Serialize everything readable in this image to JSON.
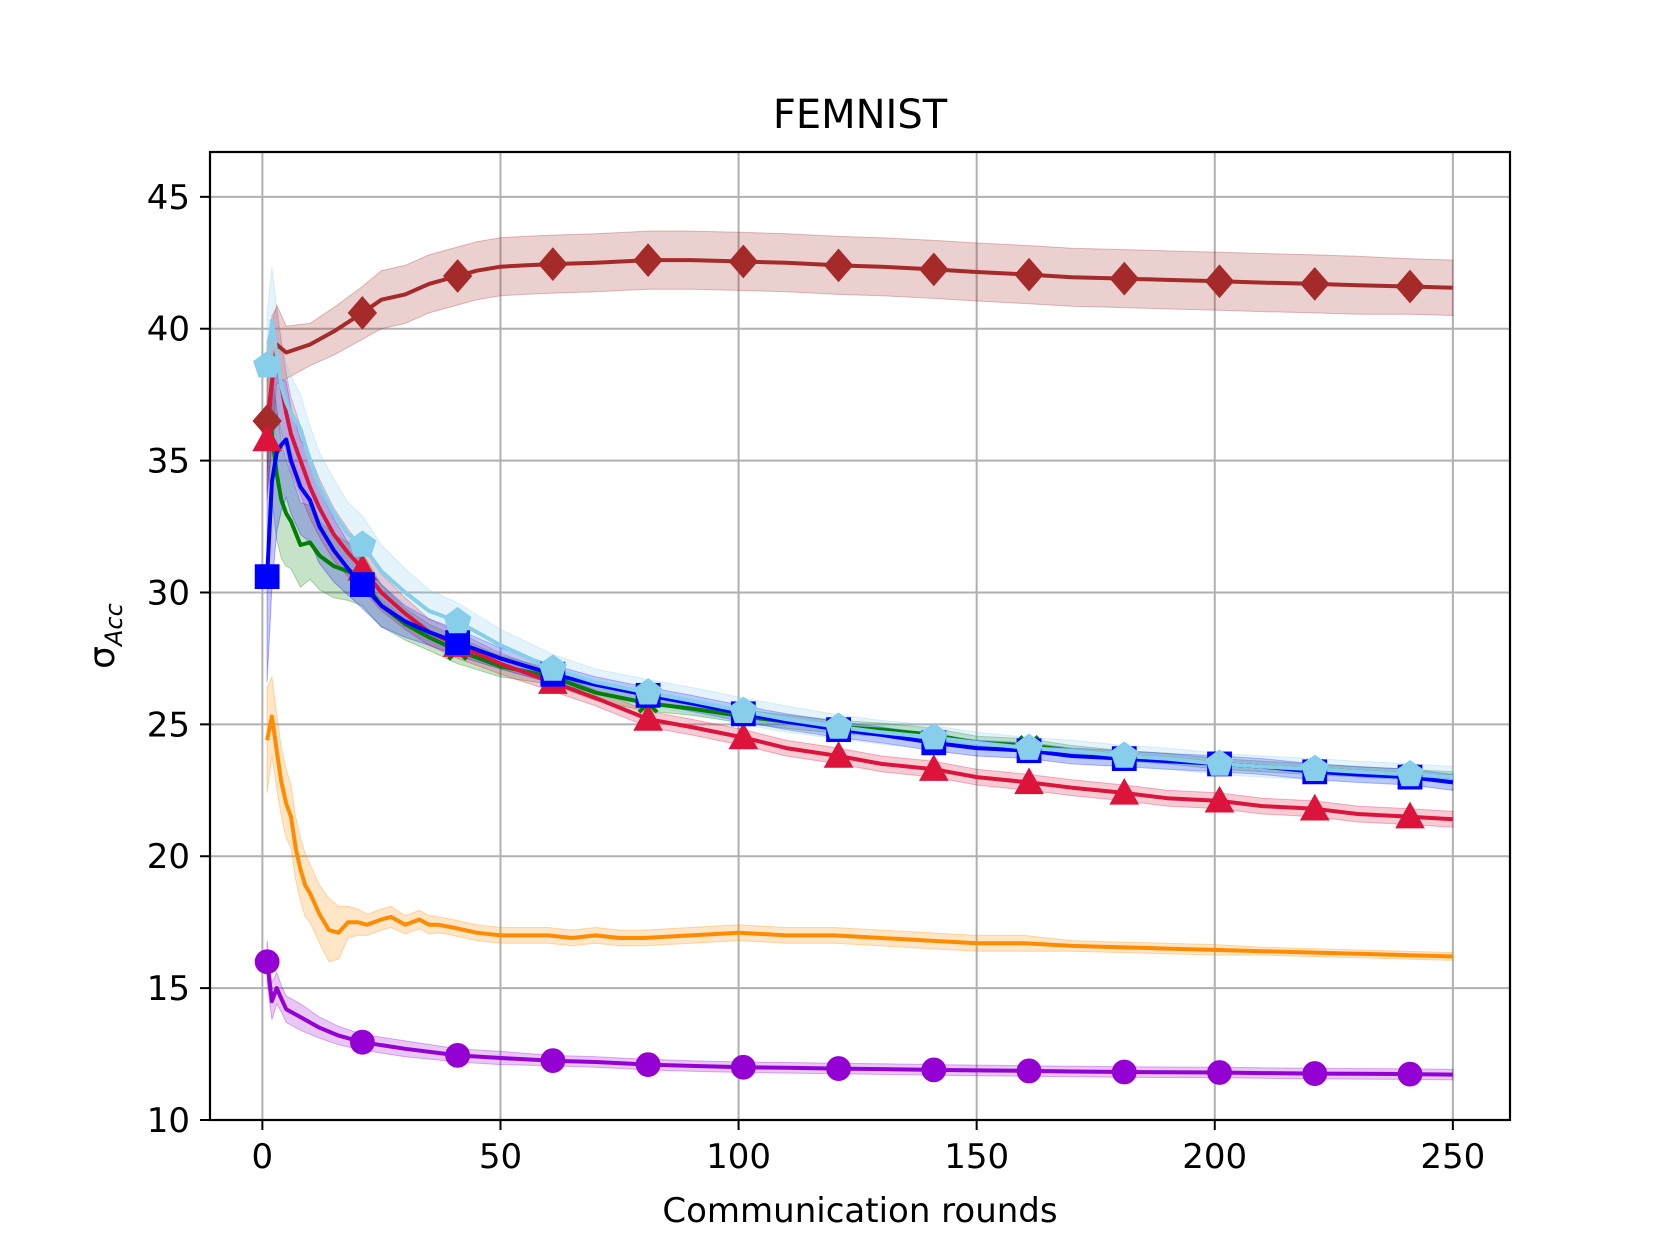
{
  "chart_data": {
    "type": "line",
    "title": "FEMNIST",
    "xlabel": "Communication rounds",
    "ylabel": "σ",
    "ylabel_sub": "Acc",
    "xlim": [
      -11,
      262
    ],
    "ylim": [
      10,
      46.7
    ],
    "xticks": [
      0,
      50,
      100,
      150,
      200,
      250
    ],
    "yticks": [
      10,
      15,
      20,
      25,
      30,
      35,
      40,
      45
    ],
    "grid": true,
    "series": [
      {
        "name": "brown-diamond",
        "color": "#a52a2a",
        "marker": "diamond",
        "x": [
          1,
          3,
          5,
          10,
          15,
          21,
          25,
          30,
          35,
          41,
          45,
          50,
          55,
          61,
          70,
          81,
          90,
          101,
          110,
          121,
          130,
          141,
          150,
          161,
          170,
          181,
          190,
          201,
          210,
          221,
          230,
          241,
          250
        ],
        "y": [
          36.5,
          39.4,
          39.1,
          39.4,
          39.9,
          40.6,
          41.1,
          41.3,
          41.7,
          42.0,
          42.2,
          42.35,
          42.4,
          42.45,
          42.5,
          42.6,
          42.6,
          42.55,
          42.5,
          42.4,
          42.35,
          42.25,
          42.15,
          42.05,
          41.95,
          41.9,
          41.85,
          41.8,
          41.75,
          41.7,
          41.65,
          41.6,
          41.55
        ],
        "band": [
          3.0,
          1.5,
          1.0,
          0.8,
          0.9,
          1.0,
          1.1,
          1.1,
          1.1,
          1.1,
          1.1,
          1.1,
          1.1,
          1.1,
          1.1,
          1.1,
          1.1,
          1.1,
          1.1,
          1.1,
          1.1,
          1.1,
          1.1,
          1.1,
          1.1,
          1.1,
          1.1,
          1.1,
          1.1,
          1.1,
          1.1,
          1.05,
          1.05
        ],
        "markers_x": [
          1,
          21,
          41,
          61,
          81,
          101,
          121,
          141,
          161,
          181,
          201,
          221,
          241
        ]
      },
      {
        "name": "green",
        "color": "#008000",
        "marker": "x",
        "x": [
          1,
          2,
          3,
          4,
          5,
          6,
          8,
          10,
          12,
          15,
          18,
          21,
          25,
          30,
          35,
          41,
          50,
          61,
          70,
          81,
          90,
          101,
          110,
          121,
          130,
          141,
          150,
          161,
          170,
          181,
          190,
          201,
          210,
          221,
          230,
          241,
          250
        ],
        "y": [
          37.0,
          36.0,
          34.5,
          33.5,
          33.0,
          32.7,
          31.8,
          31.9,
          31.4,
          31.0,
          30.8,
          30.5,
          29.5,
          28.8,
          28.3,
          27.8,
          27.2,
          26.8,
          26.2,
          25.8,
          25.6,
          25.3,
          25.1,
          24.9,
          24.8,
          24.6,
          24.3,
          24.2,
          24.0,
          23.8,
          23.7,
          23.5,
          23.4,
          23.3,
          23.2,
          23.1,
          23.0
        ],
        "band": [
          2.0,
          2.5,
          2.5,
          2.2,
          2.0,
          1.8,
          1.6,
          1.4,
          1.3,
          1.2,
          1.1,
          1.0,
          0.8,
          0.6,
          0.5,
          0.5,
          0.4,
          0.3,
          0.3,
          0.3,
          0.25,
          0.25,
          0.25,
          0.25,
          0.25,
          0.25,
          0.25,
          0.25,
          0.2,
          0.2,
          0.2,
          0.2,
          0.2,
          0.2,
          0.2,
          0.2,
          0.2
        ],
        "markers_x": [
          41,
          81,
          161,
          221,
          241
        ]
      },
      {
        "name": "crimson-triangle",
        "color": "#dc143c",
        "marker": "triangle",
        "x": [
          1,
          2,
          3,
          4,
          5,
          6,
          8,
          10,
          12,
          15,
          18,
          21,
          25,
          30,
          35,
          41,
          50,
          61,
          70,
          81,
          90,
          101,
          110,
          121,
          130,
          141,
          150,
          161,
          170,
          181,
          190,
          201,
          210,
          221,
          230,
          241,
          250
        ],
        "y": [
          35.8,
          38.0,
          38.8,
          37.8,
          36.8,
          36.0,
          35.0,
          34.0,
          33.2,
          32.2,
          31.5,
          30.9,
          30.0,
          29.2,
          28.5,
          28.0,
          27.3,
          26.6,
          26.0,
          25.2,
          24.9,
          24.5,
          24.1,
          23.8,
          23.5,
          23.3,
          23.0,
          22.8,
          22.6,
          22.4,
          22.2,
          22.1,
          21.9,
          21.8,
          21.6,
          21.5,
          21.4
        ],
        "band": [
          2.0,
          2.5,
          2.0,
          1.7,
          1.5,
          1.4,
          1.3,
          1.2,
          1.1,
          1.0,
          0.9,
          0.8,
          0.7,
          0.6,
          0.5,
          0.5,
          0.4,
          0.35,
          0.3,
          0.3,
          0.3,
          0.3,
          0.3,
          0.3,
          0.3,
          0.3,
          0.3,
          0.3,
          0.3,
          0.3,
          0.3,
          0.3,
          0.3,
          0.3,
          0.3,
          0.3,
          0.3
        ],
        "markers_x": [
          1,
          21,
          41,
          61,
          81,
          101,
          121,
          141,
          161,
          181,
          201,
          221,
          241
        ]
      },
      {
        "name": "blue-square",
        "color": "#0000ff",
        "marker": "square",
        "x": [
          1,
          2,
          3,
          4,
          5,
          6,
          8,
          10,
          12,
          15,
          18,
          21,
          25,
          30,
          35,
          41,
          50,
          61,
          70,
          81,
          90,
          101,
          110,
          121,
          130,
          141,
          150,
          161,
          170,
          181,
          190,
          201,
          210,
          221,
          230,
          241,
          250
        ],
        "y": [
          30.6,
          34.2,
          35.3,
          35.6,
          35.8,
          35.0,
          34.0,
          33.5,
          32.5,
          31.6,
          30.9,
          30.3,
          29.5,
          28.9,
          28.5,
          28.1,
          27.5,
          26.9,
          26.5,
          26.1,
          25.8,
          25.4,
          25.1,
          24.8,
          24.6,
          24.3,
          24.1,
          24.0,
          23.8,
          23.7,
          23.6,
          23.5,
          23.4,
          23.2,
          23.1,
          23.0,
          22.8
        ],
        "band": [
          4.0,
          4.0,
          3.0,
          2.5,
          2.2,
          2.0,
          1.8,
          1.6,
          1.4,
          1.2,
          1.0,
          0.9,
          0.8,
          0.6,
          0.5,
          0.5,
          0.4,
          0.35,
          0.3,
          0.3,
          0.3,
          0.3,
          0.3,
          0.3,
          0.3,
          0.3,
          0.3,
          0.3,
          0.3,
          0.3,
          0.3,
          0.3,
          0.3,
          0.3,
          0.3,
          0.3,
          0.3
        ],
        "markers_x": [
          1,
          21,
          41,
          61,
          81,
          101,
          121,
          141,
          161,
          181,
          201,
          221,
          241
        ]
      },
      {
        "name": "skyblue-pentagon",
        "color": "#87ceeb",
        "marker": "pentagon",
        "x": [
          1,
          2,
          3,
          4,
          5,
          6,
          8,
          10,
          12,
          15,
          18,
          21,
          25,
          30,
          35,
          41,
          50,
          61,
          70,
          81,
          90,
          101,
          110,
          121,
          130,
          141,
          150,
          161,
          170,
          181,
          190,
          201,
          210,
          221,
          230,
          241,
          250
        ],
        "y": [
          38.6,
          40.3,
          39.0,
          37.8,
          37.2,
          36.8,
          36.2,
          35.0,
          34.0,
          33.0,
          32.2,
          31.8,
          30.8,
          30.0,
          29.3,
          28.9,
          28.0,
          27.1,
          26.6,
          26.2,
          25.9,
          25.5,
          25.2,
          24.9,
          24.7,
          24.5,
          24.3,
          24.1,
          24.0,
          23.8,
          23.7,
          23.5,
          23.4,
          23.3,
          23.2,
          23.1,
          23.0
        ],
        "band": [
          2.0,
          2.0,
          1.8,
          1.6,
          1.5,
          1.4,
          1.3,
          1.3,
          1.3,
          1.3,
          1.2,
          1.1,
          1.0,
          0.9,
          0.8,
          0.7,
          0.6,
          0.55,
          0.5,
          0.5,
          0.5,
          0.5,
          0.5,
          0.45,
          0.45,
          0.45,
          0.4,
          0.4,
          0.4,
          0.4,
          0.4,
          0.4,
          0.4,
          0.4,
          0.4,
          0.4,
          0.4
        ],
        "markers_x": [
          1,
          21,
          41,
          61,
          81,
          101,
          121,
          141,
          161,
          181,
          201,
          221,
          241
        ]
      },
      {
        "name": "darkorange",
        "color": "#ff8c00",
        "marker": "none",
        "x": [
          1,
          2,
          3,
          4,
          5,
          6,
          7,
          8,
          9,
          10,
          12,
          14,
          16,
          18,
          20,
          22,
          25,
          27,
          30,
          33,
          35,
          37,
          40,
          45,
          50,
          55,
          60,
          65,
          70,
          75,
          80,
          90,
          100,
          110,
          120,
          130,
          140,
          150,
          160,
          170,
          180,
          190,
          200,
          210,
          220,
          230,
          240,
          250
        ],
        "y": [
          24.4,
          25.3,
          24.0,
          22.8,
          22.0,
          21.5,
          20.3,
          19.5,
          18.9,
          18.6,
          17.8,
          17.2,
          17.1,
          17.5,
          17.5,
          17.4,
          17.6,
          17.7,
          17.4,
          17.6,
          17.4,
          17.4,
          17.3,
          17.1,
          17.0,
          17.0,
          17.0,
          16.9,
          17.0,
          16.9,
          16.9,
          17.0,
          17.1,
          17.0,
          17.0,
          16.9,
          16.8,
          16.7,
          16.7,
          16.6,
          16.55,
          16.5,
          16.45,
          16.4,
          16.35,
          16.3,
          16.25,
          16.2
        ],
        "band": [
          2.0,
          1.5,
          1.4,
          1.3,
          1.3,
          1.2,
          1.2,
          1.2,
          1.2,
          1.1,
          1.1,
          1.2,
          1.0,
          0.6,
          0.5,
          0.4,
          0.4,
          0.4,
          0.35,
          0.35,
          0.35,
          0.3,
          0.3,
          0.3,
          0.3,
          0.3,
          0.3,
          0.3,
          0.3,
          0.3,
          0.3,
          0.3,
          0.3,
          0.3,
          0.3,
          0.3,
          0.3,
          0.3,
          0.3,
          0.2,
          0.2,
          0.2,
          0.2,
          0.15,
          0.15,
          0.15,
          0.15,
          0.15
        ],
        "markers_x": []
      },
      {
        "name": "darkviolet-circle",
        "color": "#9400d3",
        "marker": "circle",
        "x": [
          1,
          2,
          3,
          4,
          5,
          8,
          12,
          16,
          21,
          30,
          41,
          50,
          61,
          70,
          81,
          90,
          101,
          110,
          121,
          130,
          141,
          150,
          161,
          170,
          181,
          190,
          201,
          210,
          221,
          230,
          241,
          250
        ],
        "y": [
          16.0,
          14.5,
          15.0,
          14.6,
          14.2,
          13.9,
          13.5,
          13.2,
          12.95,
          12.7,
          12.45,
          12.35,
          12.25,
          12.2,
          12.1,
          12.05,
          12.0,
          11.98,
          11.95,
          11.93,
          11.9,
          11.88,
          11.86,
          11.84,
          11.82,
          11.81,
          11.8,
          11.78,
          11.76,
          11.75,
          11.74,
          11.72
        ],
        "band": [
          0.8,
          0.7,
          0.6,
          0.5,
          0.5,
          0.5,
          0.4,
          0.35,
          0.3,
          0.3,
          0.25,
          0.25,
          0.2,
          0.2,
          0.2,
          0.2,
          0.2,
          0.2,
          0.2,
          0.2,
          0.2,
          0.2,
          0.2,
          0.2,
          0.2,
          0.2,
          0.2,
          0.2,
          0.2,
          0.2,
          0.2,
          0.2
        ],
        "markers_x": [
          1,
          21,
          41,
          61,
          81,
          101,
          121,
          141,
          161,
          181,
          201,
          221,
          241
        ]
      }
    ]
  }
}
